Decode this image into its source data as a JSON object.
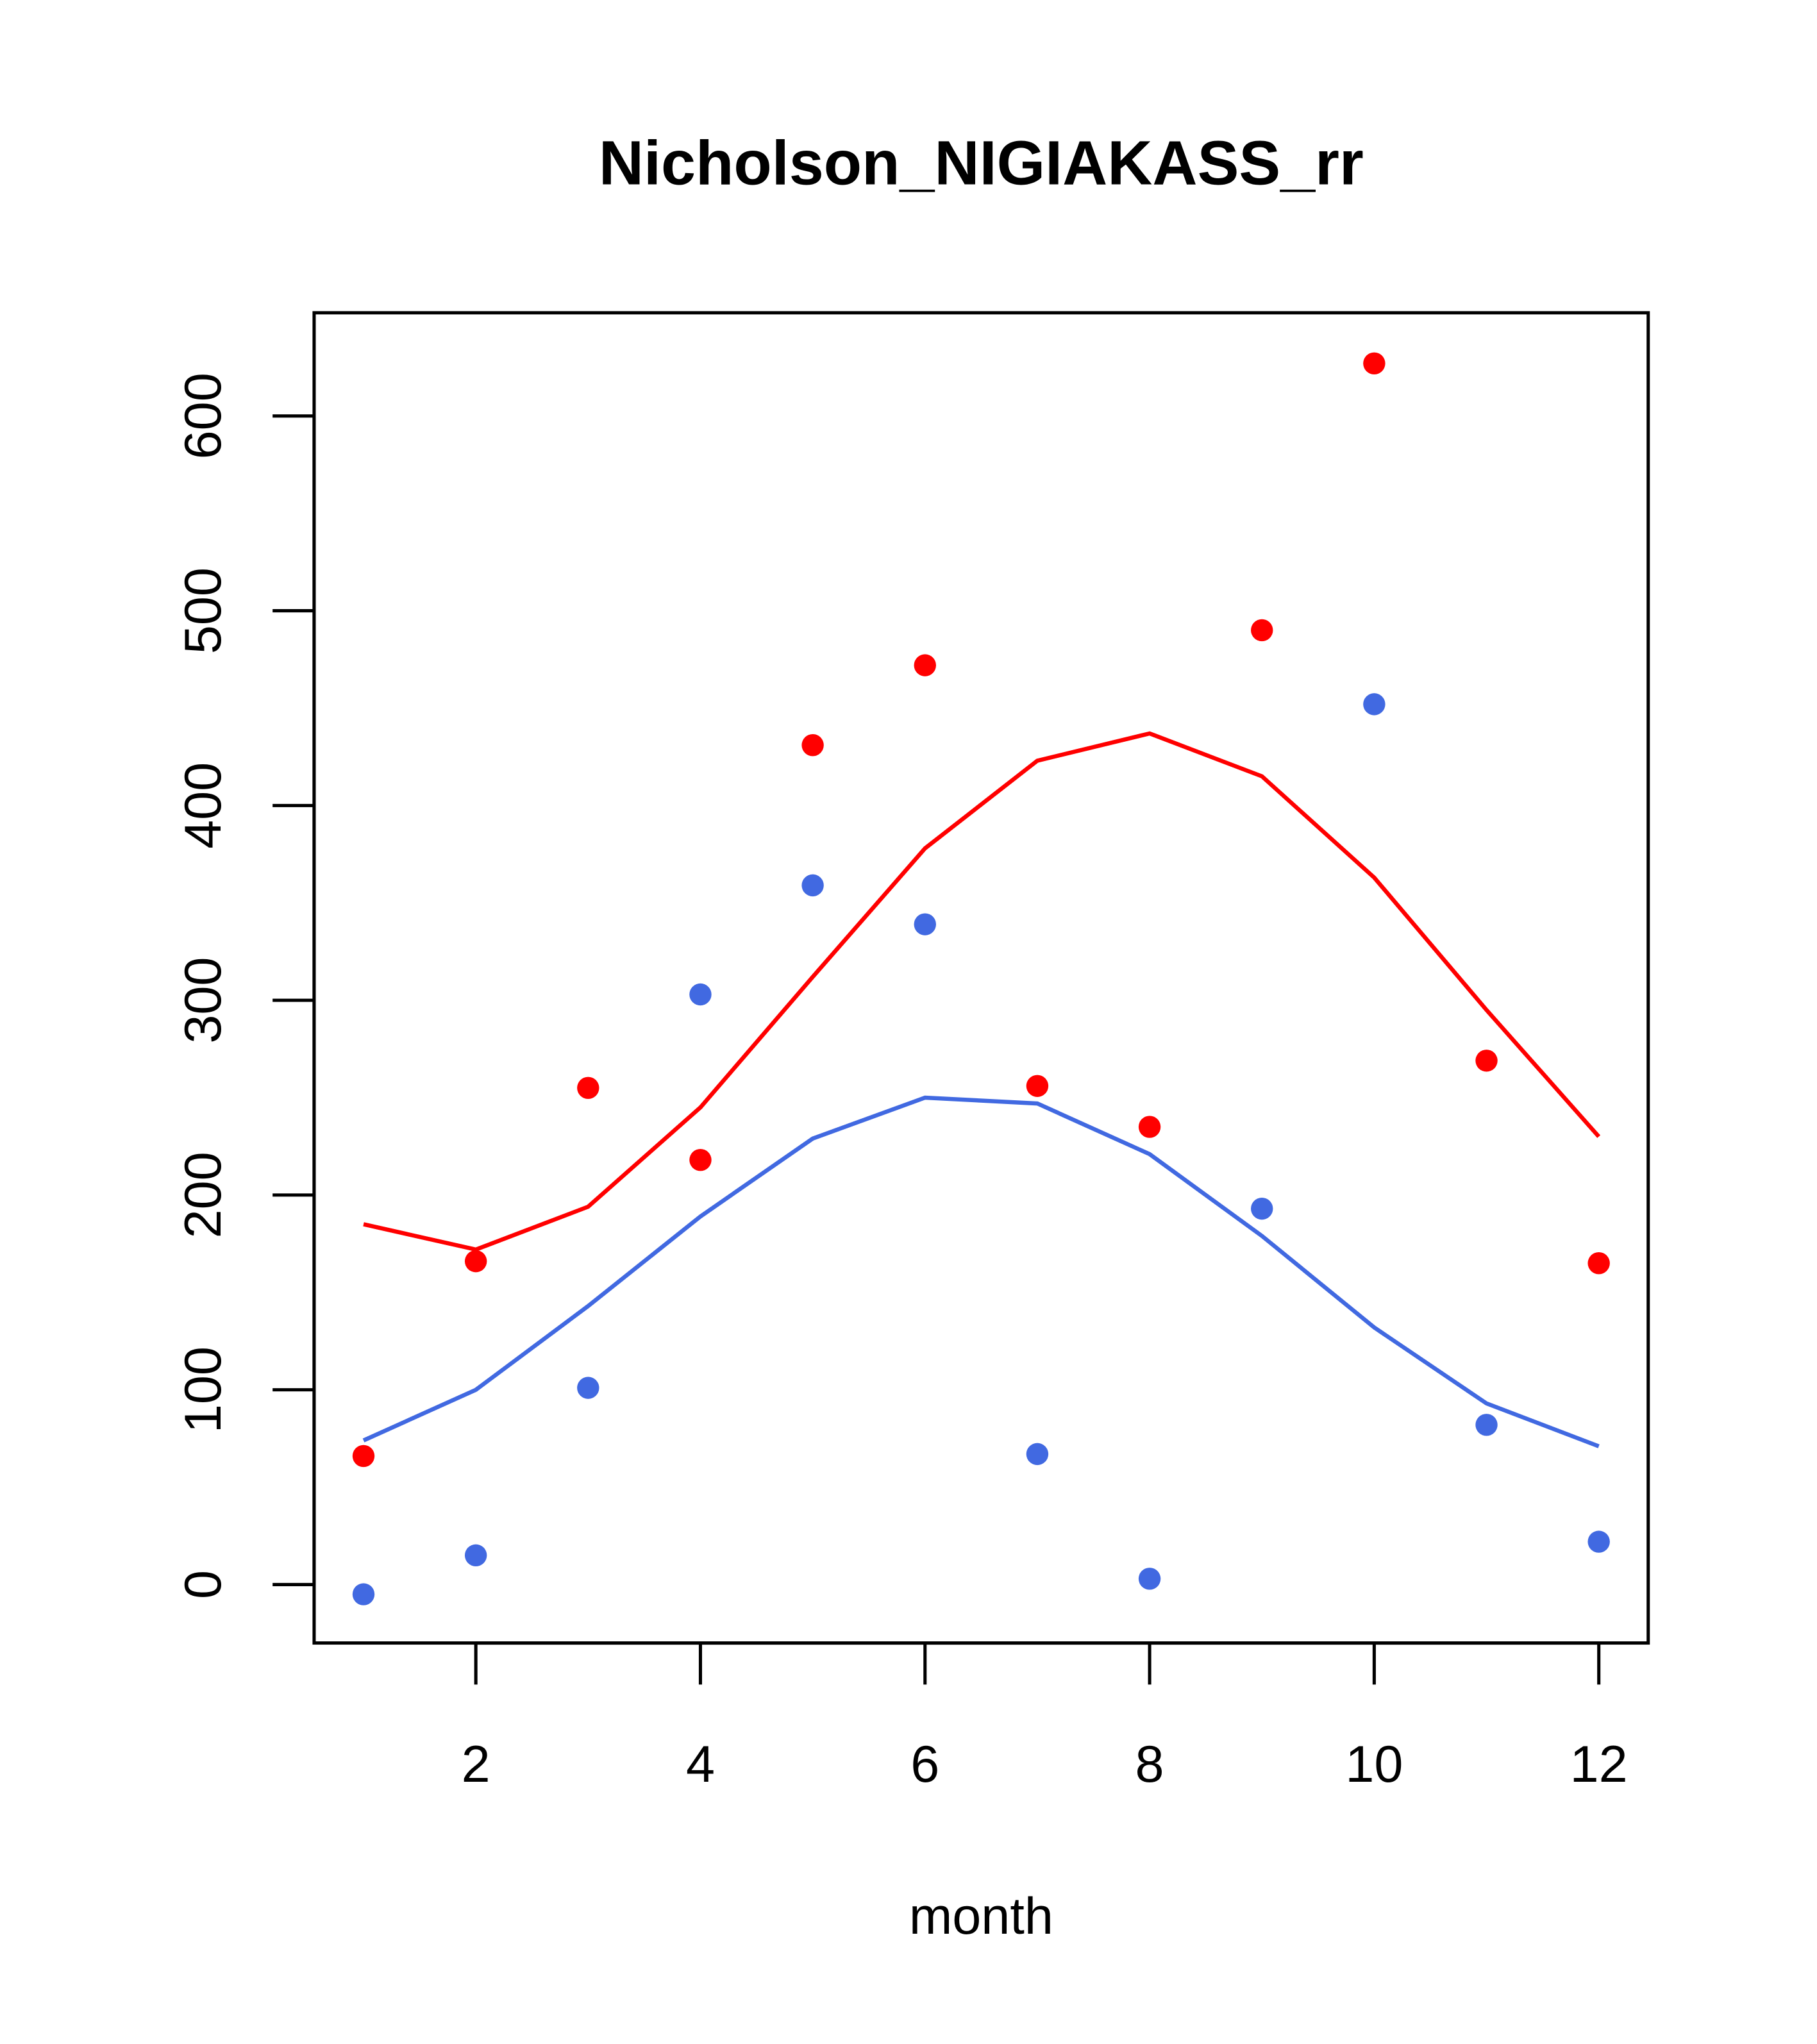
{
  "chart_data": {
    "type": "line",
    "title": "Nicholson_NIGIAKASS_rr",
    "xlabel": "month",
    "ylabel": "",
    "xlim": [
      0.56,
      12.44
    ],
    "ylim": [
      -30,
      653
    ],
    "x_ticks": [
      "2",
      "4",
      "6",
      "8",
      "10",
      "12"
    ],
    "y_ticks": [
      "0",
      "100",
      "200",
      "300",
      "400",
      "500",
      "600"
    ],
    "grid": false,
    "x": [
      1,
      2,
      3,
      4,
      5,
      6,
      7,
      8,
      9,
      10,
      11,
      12
    ],
    "series": [
      {
        "name": "red points",
        "kind": "scatter",
        "color": "#ff0000",
        "values": [
          66,
          166,
          255,
          218,
          431,
          472,
          256,
          235,
          490,
          627,
          269,
          165
        ]
      },
      {
        "name": "blue points",
        "kind": "scatter",
        "color": "#4169e1",
        "values": [
          -5,
          15,
          101,
          303,
          359,
          339,
          67,
          3,
          193,
          452,
          82,
          22
        ]
      },
      {
        "name": "red line",
        "kind": "line",
        "color": "#ff0000",
        "values": [
          185,
          172,
          194,
          245,
          312,
          378,
          423,
          437,
          415,
          363,
          295,
          230
        ]
      },
      {
        "name": "blue line",
        "kind": "line",
        "color": "#4169e1",
        "values": [
          74,
          100,
          143,
          189,
          229,
          250,
          247,
          221,
          179,
          132,
          93,
          71
        ]
      }
    ]
  }
}
